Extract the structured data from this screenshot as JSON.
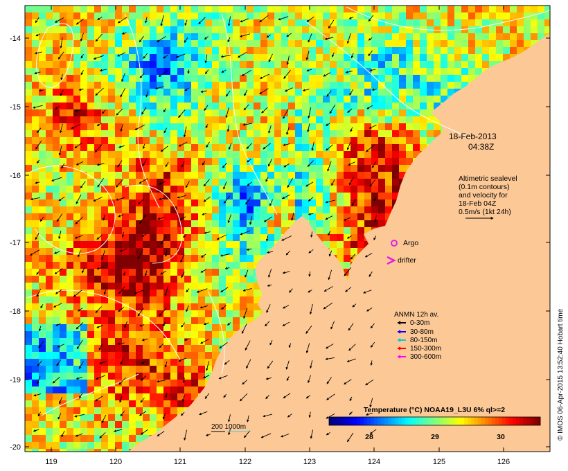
{
  "map": {
    "lon_range": [
      118.6,
      126.7
    ],
    "lat_range": [
      -20.1,
      -13.6
    ],
    "x_ticks": [
      "119",
      "120",
      "121",
      "122",
      "123",
      "124",
      "125",
      "126"
    ],
    "y_ticks": [
      "-14",
      "-15",
      "-16",
      "-17",
      "-18",
      "-19",
      "-20"
    ],
    "land_color": "#fcc896"
  },
  "date_label": {
    "line1": "18-Feb-2013",
    "line2": "04:38Z"
  },
  "altimetry_note": {
    "lines": [
      "Altimetric sealevel",
      "(0.1m contours)",
      "and velocity for",
      "18-Feb 04Z",
      "0.5m/s (1kt 24h)"
    ]
  },
  "markers": {
    "argo_label": "Argo",
    "argo_color": "#e020e0",
    "drifter_label": "drifter",
    "drifter_color": "#e020e0"
  },
  "anmn_legend": {
    "title": "ANMN 12h av.",
    "items": [
      {
        "label": "0-30m",
        "color": "#000000"
      },
      {
        "label": "30-80m",
        "color": "#0000ff"
      },
      {
        "label": "80-150m",
        "color": "#00c8e6"
      },
      {
        "label": "150-300m",
        "color": "#ff0000"
      },
      {
        "label": "300-600m",
        "color": "#ff00ff"
      }
    ]
  },
  "isobath_label": "200  1000m",
  "isobath_colors": {
    "200m": "#000000",
    "1000m": "#40c8e0"
  },
  "colorbar": {
    "title": "Temperature (°C) NOAA19_L3U 6% ql>=2",
    "min": 27.3,
    "max": 30.6,
    "ticks": [
      "28",
      "29",
      "30"
    ],
    "colors": [
      "#00007f",
      "#0000ff",
      "#007fff",
      "#00ffff",
      "#7fff7f",
      "#ffff00",
      "#ff7f00",
      "#ff0000",
      "#7f0000"
    ]
  },
  "credit": "© IMOS 06-Apr-2015 13:52:40 Hobart time"
}
